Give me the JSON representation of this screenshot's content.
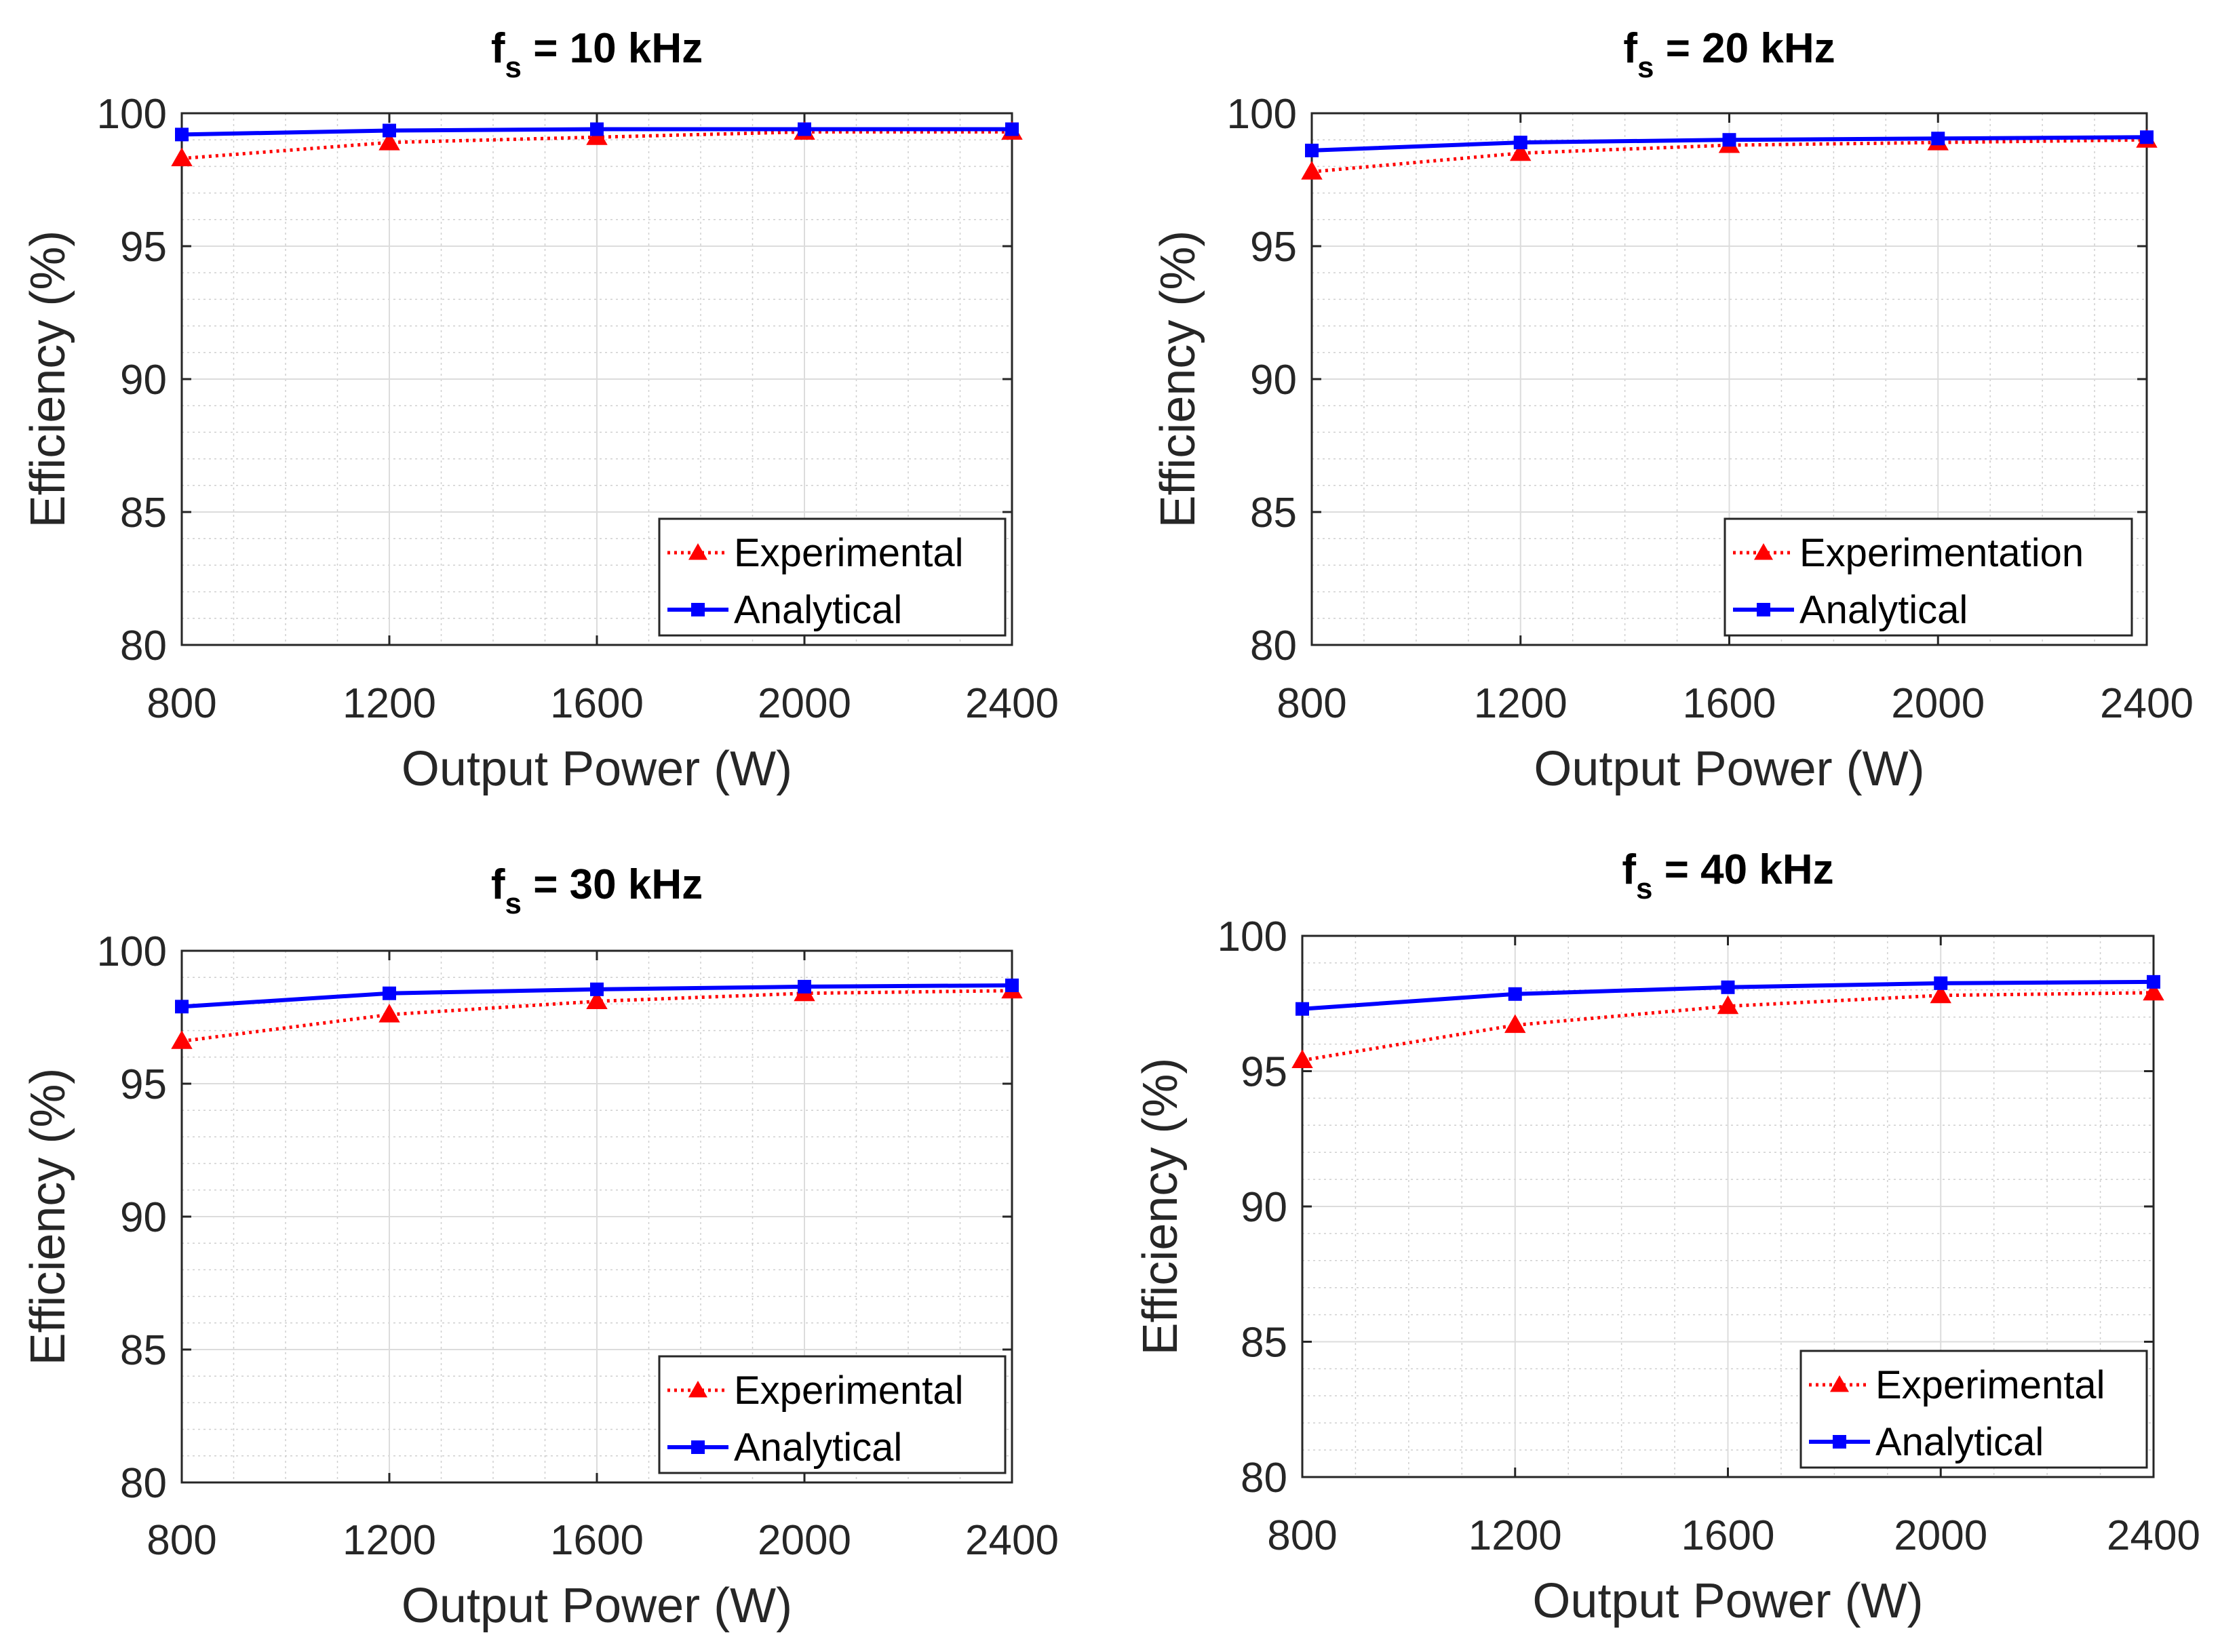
{
  "colors": {
    "experimental": "#ff0000",
    "analytical": "#0000ff",
    "grid": "#cfcfcf",
    "axis": "#262626"
  },
  "chart_data": [
    {
      "type": "line",
      "title_main": "f",
      "title_sub": "s",
      "title_rest": " = 10 kHz",
      "xlabel": "Output Power (W)",
      "ylabel": "Efficiency (%)",
      "xlim": [
        800,
        2400
      ],
      "ylim": [
        80,
        100
      ],
      "xticks": [
        "800",
        "1200",
        "1600",
        "2000",
        "2400"
      ],
      "yticks": [
        "80",
        "85",
        "90",
        "95",
        "100"
      ],
      "grid": true,
      "legend_position": "bottom-right",
      "x": [
        800,
        1200,
        1600,
        2000,
        2400
      ],
      "series": [
        {
          "name": "Experimental",
          "style": "dotted-triangle",
          "values": [
            98.3,
            98.9,
            99.1,
            99.3,
            99.3
          ]
        },
        {
          "name": "Analytical",
          "style": "solid-square",
          "values": [
            99.2,
            99.35,
            99.4,
            99.4,
            99.4
          ]
        }
      ]
    },
    {
      "type": "line",
      "title_main": "f",
      "title_sub": "s",
      "title_rest": " = 20 kHz",
      "xlabel": "Output Power (W)",
      "ylabel": "Efficiency (%)",
      "xlim": [
        800,
        2400
      ],
      "ylim": [
        80,
        100
      ],
      "xticks": [
        "800",
        "1200",
        "1600",
        "2000",
        "2400"
      ],
      "yticks": [
        "80",
        "85",
        "90",
        "95",
        "100"
      ],
      "grid": true,
      "legend_position": "bottom-right",
      "x": [
        800,
        1200,
        1600,
        2000,
        2400
      ],
      "series": [
        {
          "name": "Experimentation",
          "style": "dotted-triangle",
          "values": [
            97.8,
            98.5,
            98.8,
            98.9,
            99.0
          ]
        },
        {
          "name": "Analytical",
          "style": "solid-square",
          "values": [
            98.6,
            98.9,
            99.0,
            99.05,
            99.1
          ]
        }
      ]
    },
    {
      "type": "line",
      "title_main": "f",
      "title_sub": "s",
      "title_rest": " = 30 kHz",
      "xlabel": "Output Power (W)",
      "ylabel": "Efficiency (%)",
      "xlim": [
        800,
        2400
      ],
      "ylim": [
        80,
        100
      ],
      "xticks": [
        "800",
        "1200",
        "1600",
        "2000",
        "2400"
      ],
      "yticks": [
        "80",
        "85",
        "90",
        "95",
        "100"
      ],
      "grid": true,
      "legend_position": "bottom-right",
      "x": [
        800,
        1200,
        1600,
        2000,
        2400
      ],
      "series": [
        {
          "name": "Experimental",
          "style": "dotted-triangle",
          "values": [
            96.6,
            97.6,
            98.1,
            98.4,
            98.5
          ]
        },
        {
          "name": "Analytical",
          "style": "solid-square",
          "values": [
            97.9,
            98.4,
            98.55,
            98.65,
            98.7
          ]
        }
      ]
    },
    {
      "type": "line",
      "title_main": "f",
      "title_sub": "s",
      "title_rest": " = 40 kHz",
      "xlabel": "Output Power (W)",
      "ylabel": "Efficiency (%)",
      "xlim": [
        800,
        2400
      ],
      "ylim": [
        80,
        100
      ],
      "xticks": [
        "800",
        "1200",
        "1600",
        "2000",
        "2400"
      ],
      "yticks": [
        "80",
        "85",
        "90",
        "95",
        "100"
      ],
      "grid": true,
      "legend_position": "bottom-right",
      "x": [
        800,
        1200,
        1600,
        2000,
        2400
      ],
      "series": [
        {
          "name": "Experimental",
          "style": "dotted-triangle",
          "values": [
            95.4,
            96.7,
            97.4,
            97.8,
            97.9
          ]
        },
        {
          "name": "Analytical",
          "style": "solid-square",
          "values": [
            97.3,
            97.85,
            98.1,
            98.25,
            98.3
          ]
        }
      ]
    }
  ]
}
